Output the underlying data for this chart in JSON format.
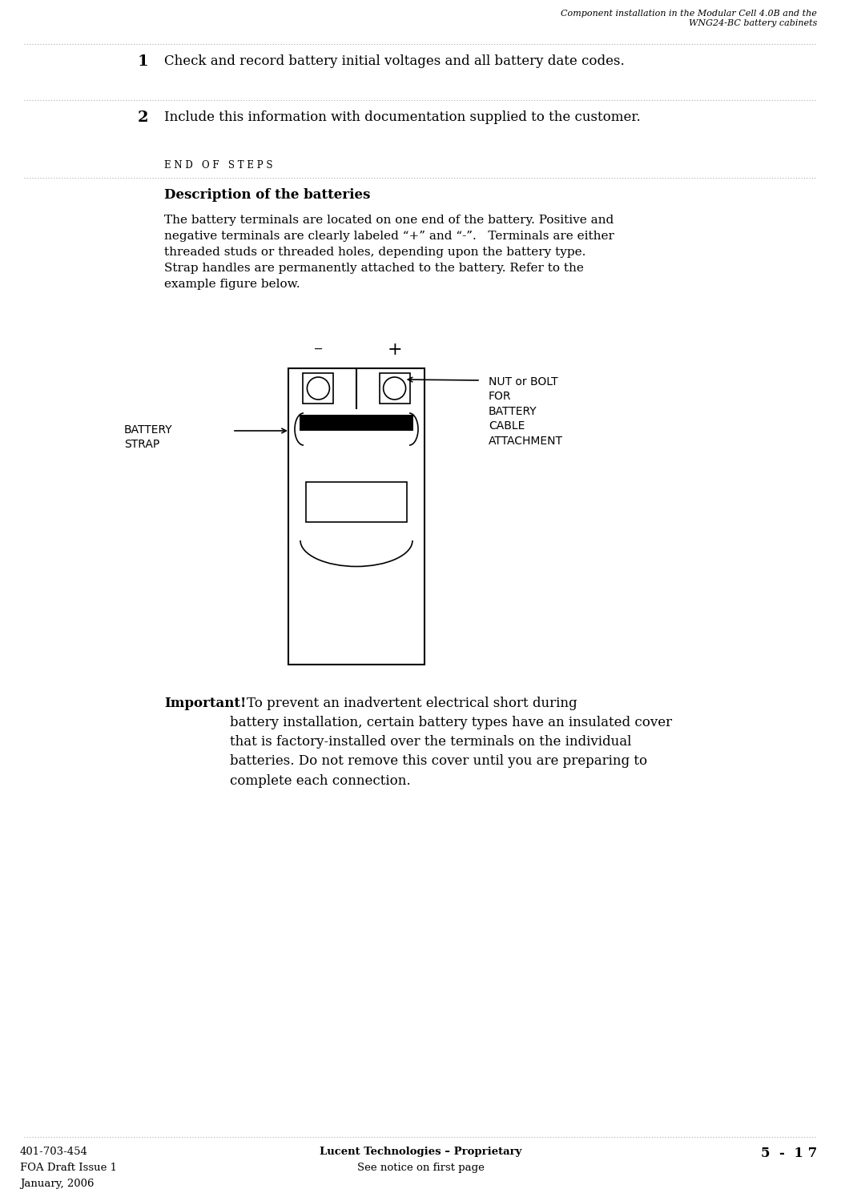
{
  "header_line1": "Component installation in the Modular Cell 4.0B and the",
  "header_line2": "WNG24-BC battery cabinets",
  "step1_num": "1",
  "step1_text": "Check and record battery initial voltages and all battery date codes.",
  "step2_num": "2",
  "step2_text": "Include this information with documentation supplied to the customer.",
  "end_of_steps": "END OF STEPS",
  "desc_title": "Description of the batteries",
  "desc_body": "The battery terminals are located on one end of the battery. Positive and\nnegative terminals are clearly labeled “+” and “-”.   Terminals are either\nthreaded studs or threaded holes, depending upon the battery type.\nStrap handles are permanently attached to the battery. Refer to the\nexample figure below.",
  "label_battery_strap": "BATTERY\nSTRAP",
  "label_nut_bolt": "NUT or BOLT\nFOR\nBATTERY\nCABLE\nATTACHMENT",
  "important_bold": "Important!",
  "important_text": "    To prevent an inadvertent electrical short during\nbattery installation, certain battery types have an insulated cover\nthat is factory-installed over the terminals on the individual\nbatteries. Do not remove this cover until you are preparing to\ncomplete each connection.",
  "footer_left1": "401-703-454",
  "footer_left2": "FOA Draft Issue 1",
  "footer_left3": "January, 2006",
  "footer_center1": "Lucent Technologies – Proprietary",
  "footer_center2": "See notice on first page",
  "footer_right": "5  -  1 7",
  "bg_color": "#ffffff",
  "text_color": "#000000"
}
